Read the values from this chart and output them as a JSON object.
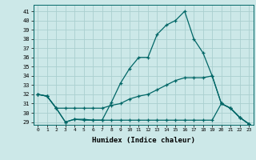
{
  "xlabel": "Humidex (Indice chaleur)",
  "background_color": "#cce8e8",
  "grid_color": "#aacfcf",
  "line_color": "#006666",
  "xlim": [
    -0.5,
    23.5
  ],
  "ylim": [
    28.7,
    41.7
  ],
  "yticks": [
    29,
    30,
    31,
    32,
    33,
    34,
    35,
    36,
    37,
    38,
    39,
    40,
    41
  ],
  "xticks": [
    0,
    1,
    2,
    3,
    4,
    5,
    6,
    7,
    8,
    9,
    10,
    11,
    12,
    13,
    14,
    15,
    16,
    17,
    18,
    19,
    20,
    21,
    22,
    23
  ],
  "series1_x": [
    0,
    1,
    2,
    3,
    4,
    5,
    6,
    7,
    8,
    9,
    10,
    11,
    12,
    13,
    14,
    15,
    16,
    17,
    18,
    19,
    20,
    21,
    22,
    23
  ],
  "series1_y": [
    32.0,
    31.8,
    30.5,
    29.0,
    29.3,
    29.3,
    29.2,
    29.2,
    31.1,
    33.2,
    34.8,
    36.0,
    36.0,
    38.5,
    39.5,
    40.0,
    41.0,
    38.0,
    36.5,
    34.0,
    31.0,
    30.5,
    29.5,
    28.8
  ],
  "series2_x": [
    0,
    1,
    2,
    3,
    4,
    5,
    6,
    7,
    8,
    9,
    10,
    11,
    12,
    13,
    14,
    15,
    16,
    17,
    18,
    19,
    20,
    21,
    22,
    23
  ],
  "series2_y": [
    32.0,
    31.8,
    30.5,
    30.5,
    30.5,
    30.5,
    30.5,
    30.5,
    30.8,
    31.0,
    31.5,
    31.8,
    32.0,
    32.5,
    33.0,
    33.5,
    33.8,
    33.8,
    33.8,
    34.0,
    31.0,
    30.5,
    29.5,
    28.8
  ],
  "series3_x": [
    0,
    1,
    2,
    3,
    4,
    5,
    6,
    7,
    8,
    9,
    10,
    11,
    12,
    13,
    14,
    15,
    16,
    17,
    18,
    19,
    20,
    21,
    22,
    23
  ],
  "series3_y": [
    32.0,
    31.8,
    30.5,
    29.0,
    29.3,
    29.2,
    29.2,
    29.2,
    29.2,
    29.2,
    29.2,
    29.2,
    29.2,
    29.2,
    29.2,
    29.2,
    29.2,
    29.2,
    29.2,
    29.2,
    31.0,
    30.5,
    29.5,
    28.8
  ]
}
